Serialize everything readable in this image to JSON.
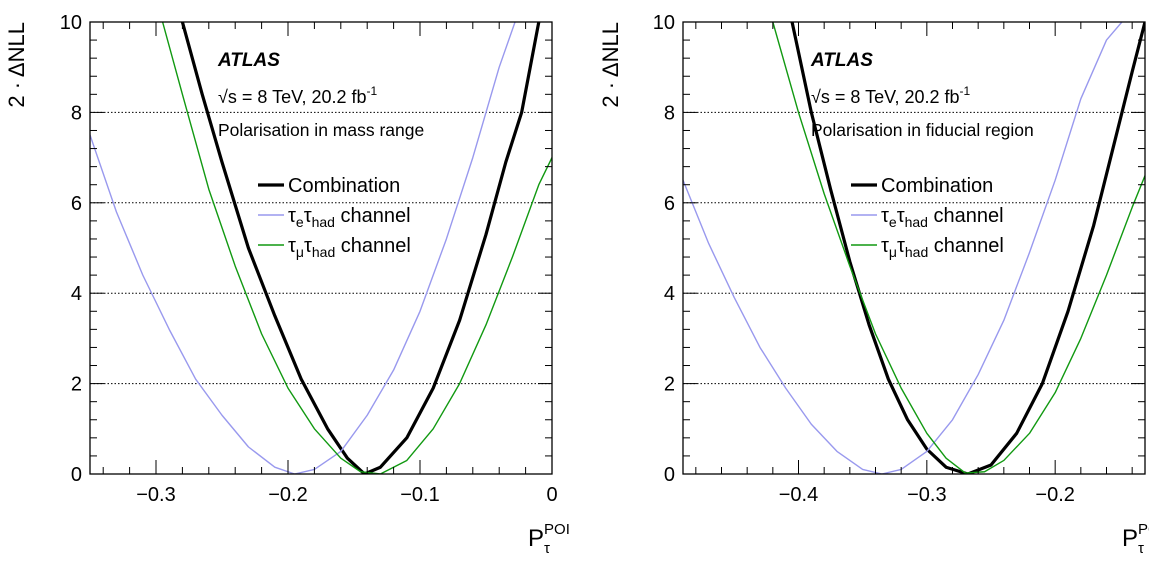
{
  "chart_data": [
    {
      "type": "line",
      "ylabel": "2 · ΔNLL",
      "xlabel_main": "P",
      "xlabel_sub": "τ",
      "xlabel_sup": "POI",
      "xlim": [
        -0.35,
        0.0
      ],
      "ylim": [
        0,
        10
      ],
      "xticks": [
        -0.3,
        -0.2,
        -0.1,
        0
      ],
      "xtick_labels": [
        "−0.3",
        "−0.2",
        "−0.1",
        "0"
      ],
      "yticks": [
        0,
        2,
        4,
        6,
        8,
        10
      ],
      "ytick_labels": [
        "0",
        "2",
        "4",
        "6",
        "8",
        "10"
      ],
      "hlines": [
        2,
        4,
        6,
        8
      ],
      "experiment": "ATLAS",
      "energy_prefix": "√s = 8 TeV, 20.2 fb",
      "energy_sup": "-1",
      "region": "Polarisation in mass range",
      "series": [
        {
          "name": "Combination",
          "color": "#000000",
          "width": 3.2,
          "x": [
            -0.28,
            -0.265,
            -0.25,
            -0.23,
            -0.21,
            -0.19,
            -0.17,
            -0.155,
            -0.142,
            -0.13,
            -0.11,
            -0.09,
            -0.07,
            -0.05,
            -0.035,
            -0.023,
            -0.01
          ],
          "y": [
            10.0,
            8.4,
            6.9,
            5.0,
            3.5,
            2.1,
            1.0,
            0.35,
            0.0,
            0.15,
            0.8,
            1.9,
            3.4,
            5.3,
            6.9,
            8.0,
            10.0
          ]
        },
        {
          "name": "τeτhad channel",
          "name_main": "τ",
          "name_sub1": "e",
          "name_mid": "τ",
          "name_sub2": "had",
          "name_suffix": " channel",
          "color": "#9999ee",
          "width": 1.4,
          "x": [
            -0.35,
            -0.33,
            -0.31,
            -0.29,
            -0.27,
            -0.25,
            -0.23,
            -0.21,
            -0.195,
            -0.18,
            -0.16,
            -0.14,
            -0.12,
            -0.1,
            -0.08,
            -0.06,
            -0.04,
            -0.028
          ],
          "y": [
            7.5,
            5.8,
            4.4,
            3.2,
            2.1,
            1.3,
            0.6,
            0.15,
            0.0,
            0.1,
            0.5,
            1.3,
            2.3,
            3.6,
            5.2,
            7.0,
            9.0,
            10.0
          ]
        },
        {
          "name": "τμτhad channel",
          "name_main": "τ",
          "name_sub1": "μ",
          "name_mid": "τ",
          "name_sub2": "had",
          "name_suffix": " channel",
          "color": "#119911",
          "width": 1.4,
          "x": [
            -0.295,
            -0.28,
            -0.26,
            -0.24,
            -0.22,
            -0.2,
            -0.18,
            -0.16,
            -0.145,
            -0.13,
            -0.11,
            -0.09,
            -0.07,
            -0.05,
            -0.03,
            -0.01,
            0.0
          ],
          "y": [
            10.0,
            8.4,
            6.3,
            4.6,
            3.1,
            1.9,
            1.0,
            0.35,
            0.05,
            0.0,
            0.3,
            1.0,
            2.0,
            3.3,
            4.8,
            6.4,
            7.0
          ]
        }
      ]
    },
    {
      "type": "line",
      "ylabel": "2 · ΔNLL",
      "xlabel_main": "P",
      "xlabel_sub": "τ",
      "xlabel_sup": "POI",
      "xlim": [
        -0.49,
        -0.13
      ],
      "ylim": [
        0,
        10
      ],
      "xticks": [
        -0.4,
        -0.3,
        -0.2
      ],
      "xtick_labels": [
        "−0.4",
        "−0.3",
        "−0.2"
      ],
      "yticks": [
        0,
        2,
        4,
        6,
        8,
        10
      ],
      "ytick_labels": [
        "0",
        "2",
        "4",
        "6",
        "8",
        "10"
      ],
      "hlines": [
        2,
        4,
        6,
        8
      ],
      "experiment": "ATLAS",
      "energy_prefix": "√s = 8 TeV, 20.2 fb",
      "energy_sup": "-1",
      "region": "Polarisation in fiducial region",
      "series": [
        {
          "name": "Combination",
          "color": "#000000",
          "width": 3.2,
          "x": [
            -0.405,
            -0.39,
            -0.375,
            -0.36,
            -0.345,
            -0.33,
            -0.315,
            -0.3,
            -0.285,
            -0.268,
            -0.25,
            -0.23,
            -0.21,
            -0.19,
            -0.17,
            -0.155,
            -0.14,
            -0.13
          ],
          "y": [
            10.0,
            8.0,
            6.3,
            4.7,
            3.3,
            2.1,
            1.2,
            0.55,
            0.15,
            0.0,
            0.2,
            0.9,
            2.0,
            3.6,
            5.5,
            7.2,
            8.9,
            10.0
          ]
        },
        {
          "name": "τeτhad channel",
          "name_main": "τ",
          "name_sub1": "e",
          "name_mid": "τ",
          "name_sub2": "had",
          "name_suffix": " channel",
          "color": "#9999ee",
          "width": 1.4,
          "x": [
            -0.49,
            -0.47,
            -0.45,
            -0.43,
            -0.41,
            -0.39,
            -0.37,
            -0.35,
            -0.335,
            -0.32,
            -0.3,
            -0.28,
            -0.26,
            -0.24,
            -0.22,
            -0.2,
            -0.18,
            -0.16,
            -0.148
          ],
          "y": [
            6.5,
            5.1,
            3.9,
            2.8,
            1.9,
            1.1,
            0.5,
            0.1,
            0.0,
            0.1,
            0.5,
            1.2,
            2.2,
            3.4,
            4.9,
            6.5,
            8.3,
            9.6,
            10.0
          ]
        },
        {
          "name": "τμτhad channel",
          "name_main": "τ",
          "name_sub1": "μ",
          "name_mid": "τ",
          "name_sub2": "had",
          "name_suffix": " channel",
          "color": "#119911",
          "width": 1.4,
          "x": [
            -0.42,
            -0.4,
            -0.38,
            -0.36,
            -0.34,
            -0.32,
            -0.3,
            -0.285,
            -0.27,
            -0.255,
            -0.24,
            -0.22,
            -0.2,
            -0.18,
            -0.16,
            -0.14,
            -0.13
          ],
          "y": [
            10.0,
            8.0,
            6.2,
            4.6,
            3.1,
            1.9,
            0.9,
            0.35,
            0.02,
            0.05,
            0.3,
            0.9,
            1.8,
            3.0,
            4.4,
            5.9,
            6.6
          ]
        }
      ]
    }
  ]
}
